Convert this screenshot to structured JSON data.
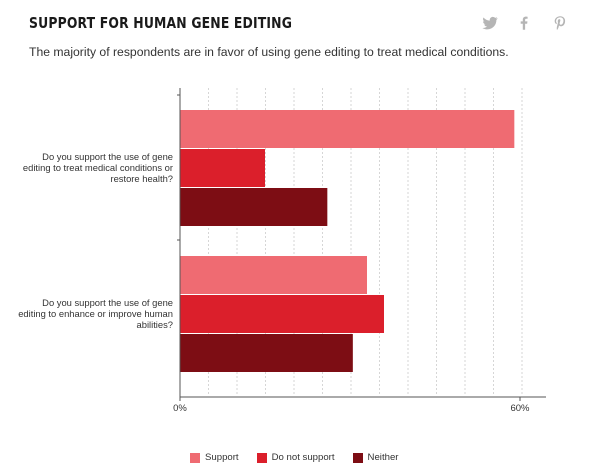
{
  "header": {
    "title": "SUPPORT FOR HUMAN GENE EDITING",
    "subtitle": "The majority of respondents are in favor of using gene editing to treat medical conditions."
  },
  "share": {
    "icons": [
      "twitter-icon",
      "facebook-icon",
      "pinterest-icon"
    ],
    "icon_color": "#b5b5b5"
  },
  "chart_data": {
    "type": "bar",
    "orientation": "horizontal",
    "categories": [
      "Do you support the use of gene editing to treat medical conditions or restore health?",
      "Do you support the use of gene editing to enhance or improve human abilities?"
    ],
    "series": [
      {
        "name": "Support",
        "color": "#ef6b72",
        "values": [
          59,
          33
        ]
      },
      {
        "name": "Do not support",
        "color": "#db1f2b",
        "values": [
          15,
          36
        ]
      },
      {
        "name": "Neither",
        "color": "#7d0d14",
        "values": [
          26,
          30.5
        ]
      }
    ],
    "xlim": [
      0,
      60
    ],
    "x_ticks": [
      "0%",
      "60%"
    ],
    "grid": true,
    "legend": "bottom"
  }
}
